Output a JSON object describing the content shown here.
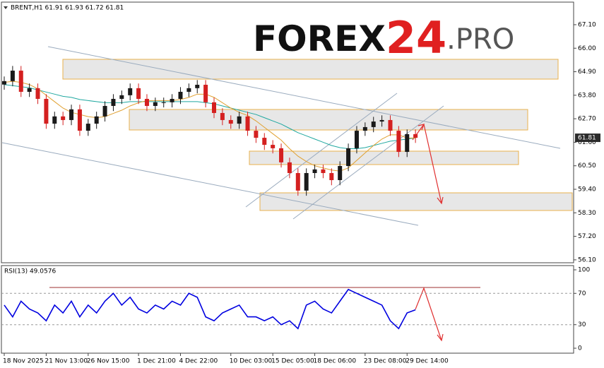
{
  "watermark": {
    "brand": "FOREX",
    "number": "24",
    "suffix": ".PRO"
  },
  "chart_data": [
    {
      "type": "candlestick",
      "title": "BRENT,H1  61.91 61.93 61.72 61.81",
      "categories": [
        "18 Nov 2025",
        null,
        null,
        null,
        null,
        "21 Nov 13:00",
        null,
        null,
        null,
        null,
        "26 Nov 15:00",
        null,
        null,
        null,
        null,
        null,
        "1 Dec 21:00",
        null,
        null,
        null,
        null,
        "4 Dec 22:00",
        null,
        null,
        null,
        null,
        null,
        "10 Dec 03:00",
        null,
        null,
        null,
        null,
        "15 Dec 05:00",
        null,
        null,
        null,
        null,
        "18 Dec 06:00",
        null,
        null,
        null,
        null,
        null,
        "23 Dec 08:00",
        null,
        null,
        null,
        null,
        "29 Dec 14:00",
        null
      ],
      "open": [
        64.3,
        64.46,
        64.95,
        63.96,
        64.13,
        63.63,
        62.47,
        62.81,
        62.64,
        63.14,
        62.14,
        62.47,
        62.81,
        63.3,
        63.63,
        63.8,
        64.13,
        63.63,
        63.3,
        63.47,
        63.47,
        63.63,
        63.96,
        64.13,
        64.29,
        63.47,
        62.97,
        62.64,
        62.47,
        62.81,
        62.14,
        61.81,
        61.48,
        61.32,
        60.66,
        60.16,
        59.34,
        60.16,
        60.33,
        60.16,
        59.83,
        60.49,
        61.32,
        62.14,
        62.31,
        62.57,
        62.64,
        62.14,
        61.15,
        61.98
      ],
      "high": [
        64.68,
        65.17,
        65.17,
        64.35,
        64.35,
        63.85,
        63.03,
        63.03,
        63.36,
        63.36,
        62.69,
        63.03,
        63.52,
        63.85,
        64.02,
        64.35,
        64.35,
        63.85,
        63.69,
        63.69,
        63.85,
        64.18,
        64.35,
        64.51,
        64.51,
        63.69,
        63.19,
        62.86,
        63.03,
        63.03,
        62.36,
        62.03,
        61.7,
        61.54,
        60.88,
        60.38,
        60.38,
        60.55,
        60.55,
        60.38,
        60.71,
        61.54,
        62.36,
        62.53,
        62.79,
        62.86,
        62.86,
        62.36,
        62.2,
        62.2
      ],
      "low": [
        64.06,
        64.22,
        63.72,
        63.72,
        63.39,
        62.23,
        62.23,
        62.4,
        62.4,
        61.9,
        61.9,
        62.23,
        62.57,
        63.06,
        63.39,
        63.56,
        63.39,
        63.06,
        63.06,
        63.23,
        63.23,
        63.39,
        63.72,
        63.89,
        63.23,
        62.73,
        62.4,
        62.23,
        62.23,
        61.9,
        61.57,
        61.24,
        61.08,
        60.42,
        59.92,
        59.1,
        59.1,
        59.92,
        59.92,
        59.59,
        59.59,
        60.25,
        61.08,
        61.9,
        62.07,
        62.33,
        61.9,
        60.91,
        60.91,
        61.57
      ],
      "close": [
        64.46,
        64.95,
        63.96,
        64.13,
        63.63,
        62.47,
        62.81,
        62.64,
        63.14,
        62.14,
        62.47,
        62.81,
        63.3,
        63.63,
        63.8,
        64.13,
        63.63,
        63.3,
        63.47,
        63.47,
        63.63,
        63.96,
        64.13,
        64.29,
        63.47,
        62.97,
        62.64,
        62.47,
        62.81,
        62.14,
        61.81,
        61.48,
        61.32,
        60.66,
        60.16,
        59.34,
        60.16,
        60.33,
        60.16,
        59.83,
        60.49,
        61.32,
        62.14,
        62.31,
        62.57,
        62.64,
        62.14,
        61.15,
        61.98,
        61.81
      ],
      "up_color": "#1a1a1a",
      "down_color": "#d42020",
      "series": [
        {
          "color": "#20a8a0",
          "values": [
            64.3,
            64.25,
            64.2,
            64.15,
            64.05,
            63.95,
            63.85,
            63.75,
            63.7,
            63.6,
            63.55,
            63.5,
            63.45,
            63.45,
            63.45,
            63.5,
            63.5,
            63.5,
            63.5,
            63.5,
            63.5,
            63.5,
            63.5,
            63.5,
            63.45,
            63.4,
            63.3,
            63.2,
            63.1,
            63.0,
            62.9,
            62.75,
            62.6,
            62.45,
            62.25,
            62.05,
            61.9,
            61.75,
            61.6,
            61.45,
            61.35,
            61.3,
            61.3,
            61.35,
            61.45,
            61.55,
            61.65,
            61.7,
            61.75,
            61.8
          ]
        },
        {
          "color": "#e0a030",
          "values": [
            64.4,
            64.45,
            64.4,
            64.3,
            64.1,
            63.8,
            63.5,
            63.2,
            63.0,
            62.9,
            62.8,
            62.75,
            62.8,
            62.95,
            63.1,
            63.3,
            63.45,
            63.55,
            63.55,
            63.55,
            63.55,
            63.6,
            63.7,
            63.85,
            63.85,
            63.7,
            63.45,
            63.2,
            63.0,
            62.85,
            62.6,
            62.3,
            62.0,
            61.7,
            61.3,
            60.95,
            60.7,
            60.5,
            60.4,
            60.3,
            60.25,
            60.4,
            60.75,
            61.1,
            61.45,
            61.75,
            61.95,
            61.95,
            61.8,
            61.8
          ]
        }
      ],
      "ylim": [
        56.03,
        68.09
      ],
      "yticks": [
        {
          "value": 67.1,
          "label": "67.10"
        },
        {
          "value": 66.0,
          "label": "66.00"
        },
        {
          "value": 64.9,
          "label": "64.90"
        },
        {
          "value": 63.8,
          "label": "63.80"
        },
        {
          "value": 62.7,
          "label": "62.70"
        },
        {
          "value": 61.6,
          "label": "61.60"
        },
        {
          "value": 60.5,
          "label": "60.50"
        },
        {
          "value": 59.4,
          "label": "59.40"
        },
        {
          "value": 58.3,
          "label": "58.30"
        },
        {
          "value": 57.2,
          "label": "57.20"
        },
        {
          "value": 56.1,
          "label": "56.10"
        }
      ],
      "last_price": 61.81
    },
    {
      "type": "line",
      "title": "RSI(13) 49.0576",
      "color": "#0000e0",
      "values": [
        55,
        40,
        60,
        50,
        45,
        35,
        55,
        45,
        60,
        40,
        55,
        45,
        60,
        70,
        55,
        65,
        50,
        45,
        55,
        50,
        60,
        55,
        70,
        65,
        40,
        35,
        45,
        50,
        55,
        40,
        40,
        35,
        40,
        30,
        35,
        25,
        55,
        60,
        50,
        45,
        60,
        75,
        70,
        65,
        60,
        55,
        35,
        25,
        45,
        49
      ],
      "ylim": [
        0,
        100
      ],
      "yticks": [
        100,
        70,
        30,
        0
      ],
      "level_lines": true
    }
  ]
}
